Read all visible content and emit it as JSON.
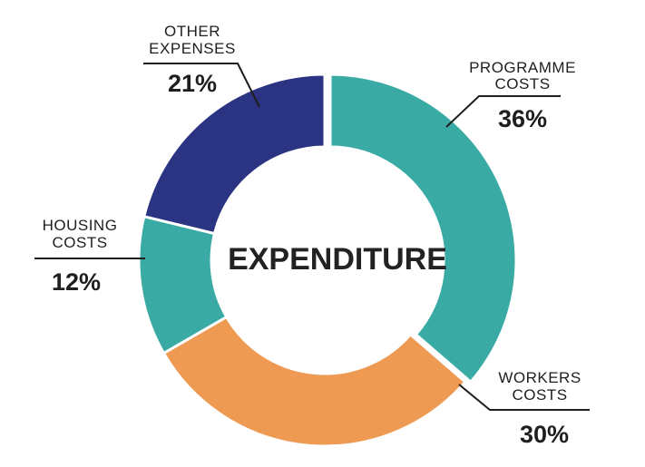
{
  "chart_data": {
    "type": "pie",
    "title": "EXPENDITURE",
    "slices": [
      {
        "name_line1": "PROGRAMME",
        "name_line2": "COSTS",
        "label": "36%",
        "value": 36,
        "color": "#3AAAA5"
      },
      {
        "name_line1": "WORKERS",
        "name_line2": "COSTS",
        "label": "30%",
        "value": 30,
        "color": "#EE9A52"
      },
      {
        "name_line1": "HOUSING",
        "name_line2": "COSTS",
        "label": "12%",
        "value": 12,
        "color": "#3AAAA5"
      },
      {
        "name_line1": "OTHER",
        "name_line2": "EXPENSES",
        "label": "21%",
        "value": 21,
        "color": "#2B3383"
      }
    ]
  }
}
